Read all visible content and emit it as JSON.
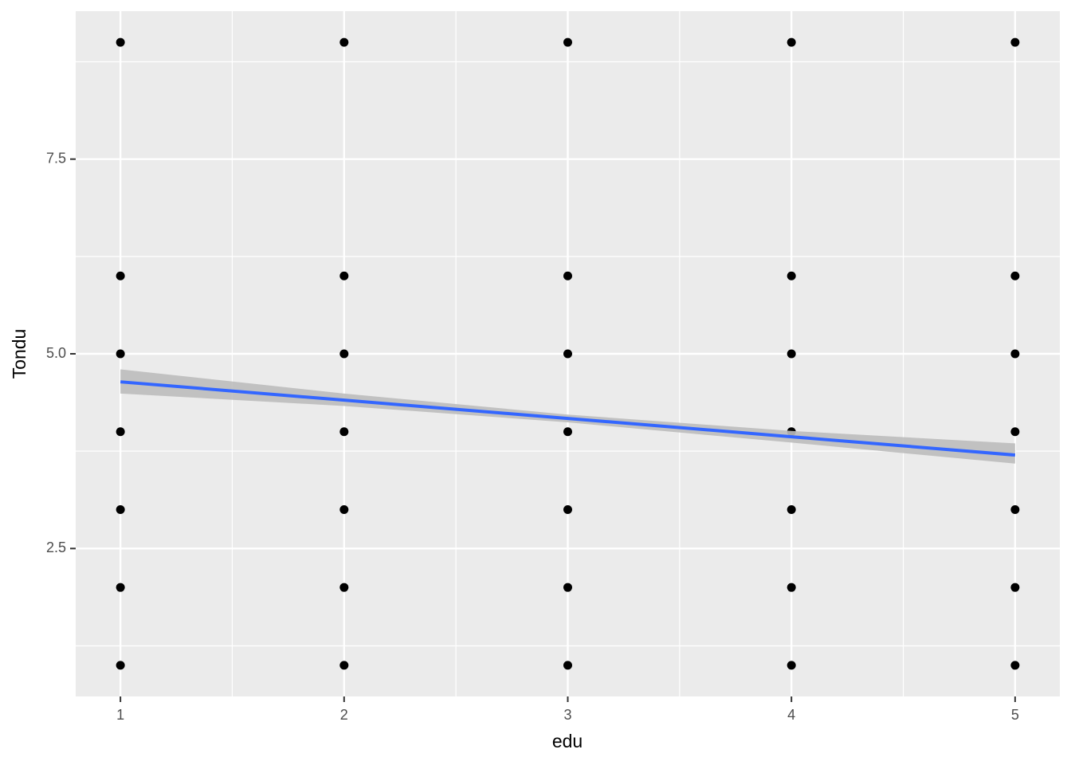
{
  "chart_data": {
    "type": "scatter",
    "x_label": "edu",
    "y_label": "Tondu",
    "x": [
      1,
      1,
      1,
      1,
      1,
      1,
      1,
      2,
      2,
      2,
      2,
      2,
      2,
      2,
      3,
      3,
      3,
      3,
      3,
      3,
      3,
      4,
      4,
      4,
      4,
      4,
      4,
      4,
      5,
      5,
      5,
      5,
      5,
      5,
      5
    ],
    "y": [
      1,
      2,
      3,
      4,
      5,
      6,
      9,
      1,
      2,
      3,
      4,
      5,
      6,
      9,
      1,
      2,
      3,
      4,
      5,
      6,
      9,
      1,
      2,
      3,
      4,
      5,
      6,
      9,
      1,
      2,
      3,
      4,
      5,
      6,
      9
    ],
    "color": "#000000",
    "xlim": [
      0.8,
      5.2
    ],
    "ylim": [
      0.6,
      9.4
    ],
    "xticks": [
      1,
      2,
      3,
      4,
      5
    ],
    "yticks": [
      2.5,
      {
        "value": 5,
        "label": "5.0"
      },
      7.5
    ],
    "x_minor_grid": [
      1.5,
      2.5,
      3.5,
      4.5
    ],
    "y_minor_grid": [
      1.25,
      3.75,
      6.25,
      8.75
    ],
    "grid": true,
    "smooth": {
      "x": [
        1,
        2,
        3,
        4,
        5
      ],
      "values": [
        4.64,
        4.405,
        4.17,
        3.935,
        3.7
      ],
      "lower": [
        4.49,
        4.33,
        4.12,
        3.86,
        3.59
      ],
      "upper": [
        4.8,
        4.49,
        4.22,
        4.01,
        3.85
      ],
      "color": "#3366ff",
      "band_color": "#bdbdbd"
    }
  }
}
